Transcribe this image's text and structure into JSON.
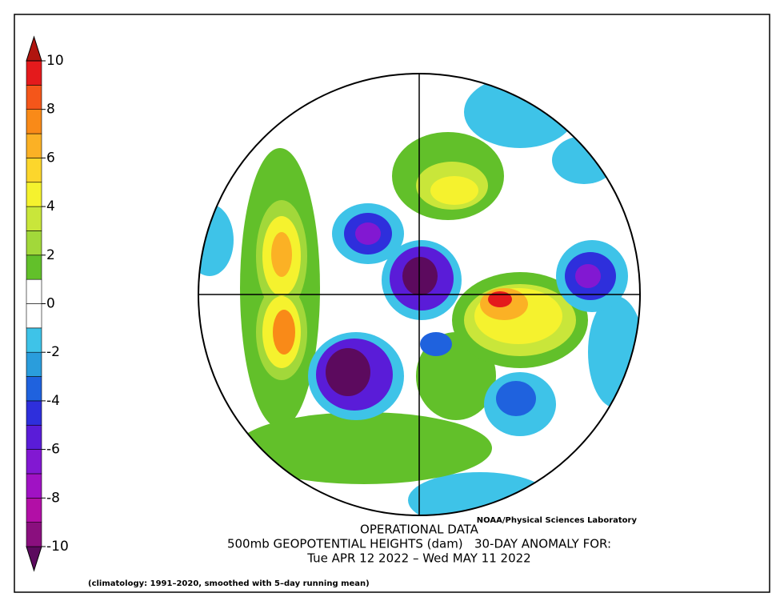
{
  "chart_data": {
    "type": "polar-anomaly-map",
    "source": "NOAA/Physical Sciences Laboratory",
    "title": "OPERATIONAL DATA",
    "subtitle": "500mb GEOPOTENTIAL HEIGHTS (dam)   30-DAY ANOMALY FOR:",
    "period": "Tue APR 12 2022 – Wed MAY 11 2022",
    "note": "(climatology: 1991–2020, smoothed with 5–day running mean)",
    "colorbar": {
      "levels": [
        -10,
        -9,
        -8,
        -7,
        -6,
        -5,
        -4,
        -3,
        -2,
        -1,
        0,
        1,
        2,
        3,
        4,
        5,
        6,
        7,
        8,
        9,
        10
      ],
      "colors": [
        "#5c0a5e",
        "#8a0f7e",
        "#b20fa6",
        "#a012c4",
        "#8218d2",
        "#5a1cd8",
        "#2e2fdc",
        "#1f62de",
        "#2a9ddc",
        "#3ec3e8",
        "#ffffff",
        "#ffffff",
        "#62c02a",
        "#a2d83a",
        "#c9e63a",
        "#f5f22e",
        "#fcd62c",
        "#fbb125",
        "#f98a18",
        "#f4561a",
        "#e41a1c",
        "#b0150f"
      ],
      "ticks": [
        -10,
        -8,
        -6,
        -4,
        -2,
        0,
        2,
        4,
        6,
        8,
        10
      ]
    }
  }
}
